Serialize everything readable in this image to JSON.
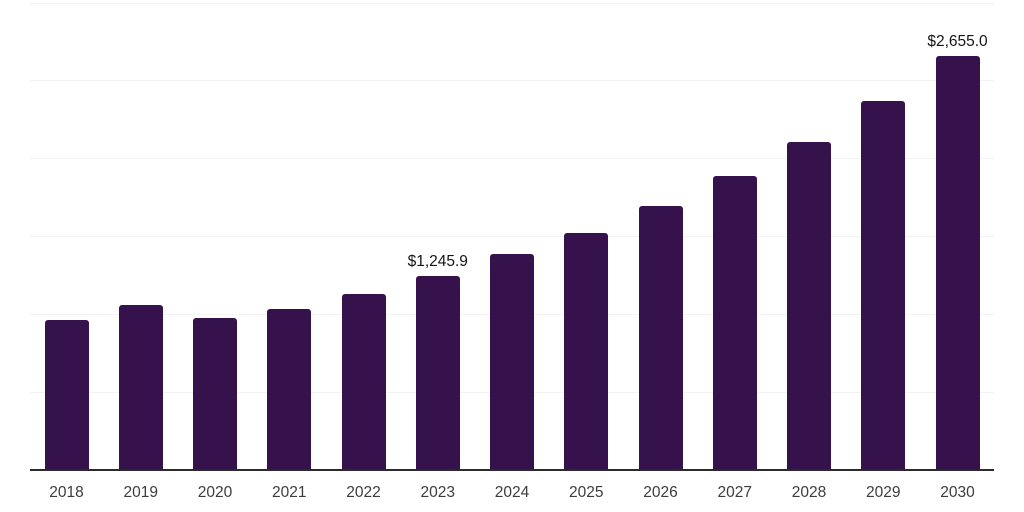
{
  "chart_data": {
    "type": "bar",
    "title": "",
    "xlabel": "",
    "ylabel": "",
    "categories": [
      "2018",
      "2019",
      "2020",
      "2021",
      "2022",
      "2023",
      "2024",
      "2025",
      "2026",
      "2027",
      "2028",
      "2029",
      "2030"
    ],
    "values": [
      960,
      1060,
      975,
      1030,
      1130,
      1245.9,
      1385,
      1520,
      1695,
      1885,
      2105,
      2365,
      2655.0
    ],
    "data_labels": {
      "2023": "$1,245.9",
      "2030": "$2,655.0"
    },
    "ylim": [
      0,
      3000
    ],
    "grid_step": 500,
    "grid": true,
    "y_tick_labels_visible": false,
    "legend_position": "none",
    "colors": {
      "bar": "#36124D",
      "axis_line": "#2B2B2B",
      "gridline": "#F3F2F4",
      "tick_label": "#3C3C3C",
      "data_label": "#141414",
      "background": "#FFFFFF"
    }
  }
}
